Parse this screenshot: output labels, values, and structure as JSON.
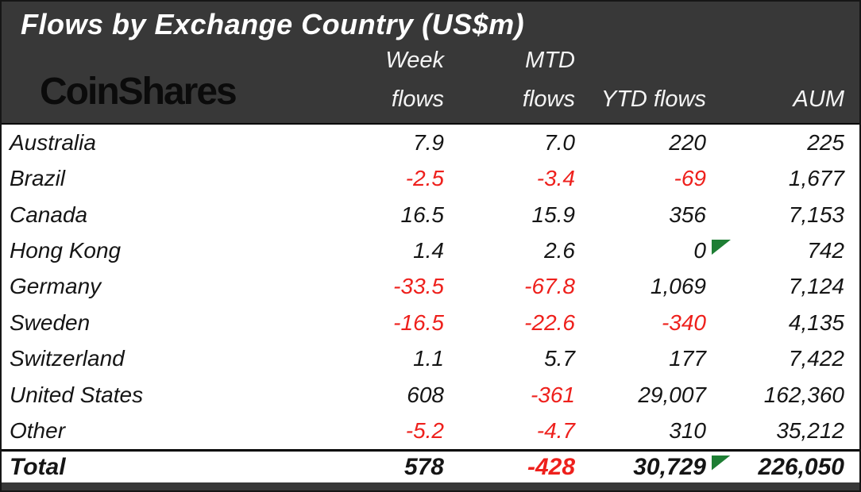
{
  "page": {
    "title": "Flows by Exchange Country (US$m)",
    "logo_text": "CoinShares"
  },
  "columns": {
    "week_line1": "Week",
    "week_line2": "flows",
    "mtd_line1": "MTD",
    "mtd_line2": "flows",
    "ytd_label": "YTD flows",
    "aum_label": "AUM"
  },
  "chart_data": {
    "type": "table",
    "title": "Flows by Exchange Country (US$m)",
    "units": "US$m",
    "columns": [
      "Country",
      "Week flows",
      "MTD flows",
      "YTD flows",
      "AUM"
    ],
    "rows": [
      {
        "country": "Australia",
        "week": "7.9",
        "mtd": "7.0",
        "ytd": "220",
        "aum": "225",
        "ytd_marker": false
      },
      {
        "country": "Brazil",
        "week": "-2.5",
        "mtd": "-3.4",
        "ytd": "-69",
        "aum": "1,677",
        "ytd_marker": false
      },
      {
        "country": "Canada",
        "week": "16.5",
        "mtd": "15.9",
        "ytd": "356",
        "aum": "7,153",
        "ytd_marker": false
      },
      {
        "country": "Hong Kong",
        "week": "1.4",
        "mtd": "2.6",
        "ytd": "0",
        "aum": "742",
        "ytd_marker": true
      },
      {
        "country": "Germany",
        "week": "-33.5",
        "mtd": "-67.8",
        "ytd": "1,069",
        "aum": "7,124",
        "ytd_marker": false
      },
      {
        "country": "Sweden",
        "week": "-16.5",
        "mtd": "-22.6",
        "ytd": "-340",
        "aum": "4,135",
        "ytd_marker": false
      },
      {
        "country": "Switzerland",
        "week": "1.1",
        "mtd": "5.7",
        "ytd": "177",
        "aum": "7,422",
        "ytd_marker": false
      },
      {
        "country": "United States",
        "week": "608",
        "mtd": "-361",
        "ytd": "29,007",
        "aum": "162,360",
        "ytd_marker": false
      },
      {
        "country": "Other",
        "week": "-5.2",
        "mtd": "-4.7",
        "ytd": "310",
        "aum": "35,212",
        "ytd_marker": false
      }
    ],
    "total": {
      "label": "Total",
      "week": "578",
      "mtd": "-428",
      "ytd": "30,729",
      "aum": "226,050",
      "ytd_marker": true
    }
  },
  "colors": {
    "header_bg": "#383838",
    "negative_value": "#ee201c",
    "body_text": "#151515",
    "marker_green": "#1e7e34",
    "title_text": "#ffffff",
    "logo_text": "#0b0b0b"
  }
}
